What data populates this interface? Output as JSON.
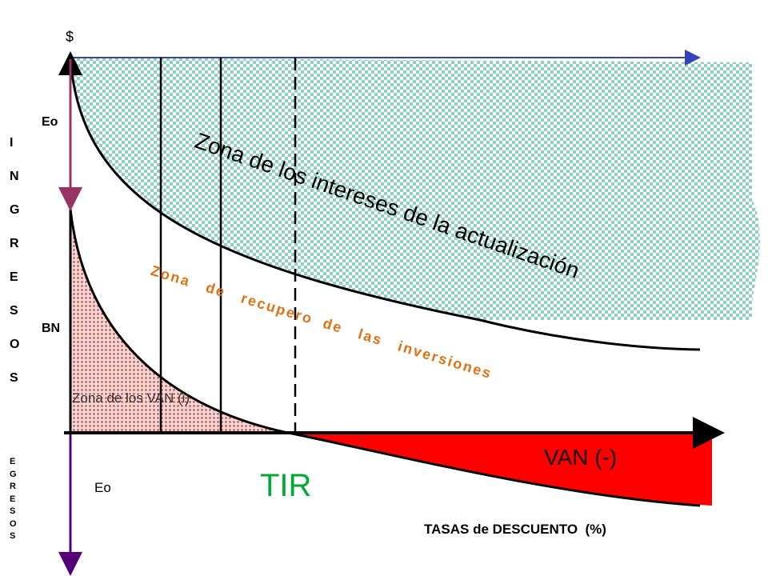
{
  "axis": {
    "y_unit": "$",
    "x_label": "TASAS de DESCUENTO  (%)",
    "upper_label": "INGRESOS",
    "lower_label": "EGRESOS"
  },
  "labels": {
    "eo_top": "Eo",
    "bn": "BN",
    "eo_bottom": "Eo",
    "tir": "TIR",
    "van_negative": "VAN (-)"
  },
  "zones": {
    "interests": "Zona de los intereses de la actualización",
    "recovery": "Zona   de   recupero  de   las   inversiones",
    "van": "Zona de los VAN (i)"
  }
}
